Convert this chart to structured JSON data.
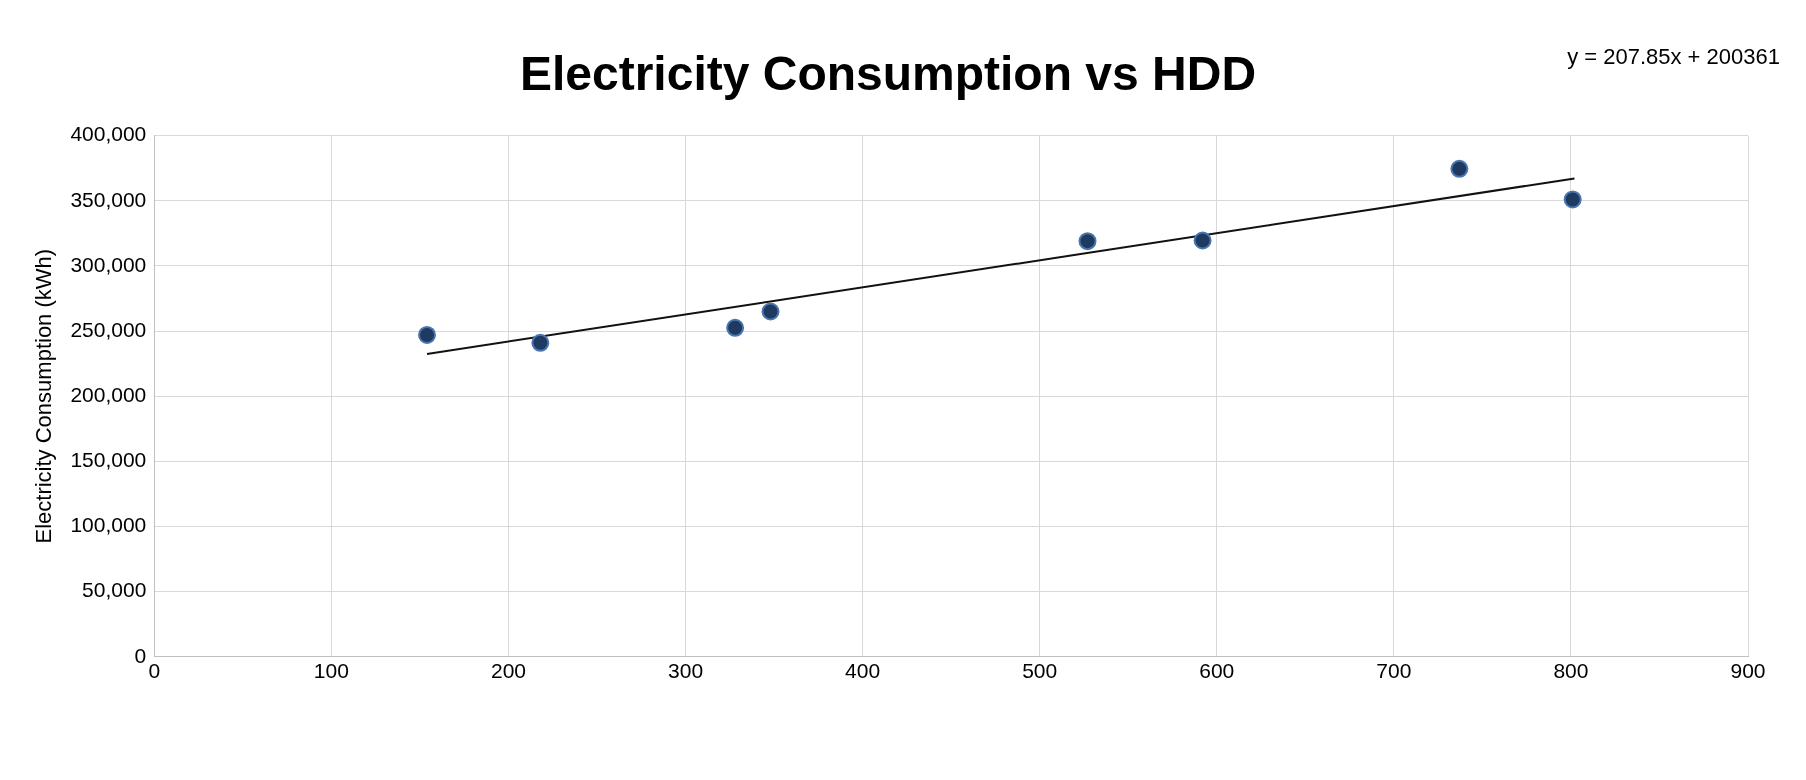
{
  "chart_data": {
    "type": "scatter",
    "title": "Electricity Consumption vs HDD",
    "ylabel": "Electricity Consumption (kWh)",
    "annotations": [
      "y = 207.85x + 200361"
    ],
    "xlim": [
      0,
      900
    ],
    "xticks": [
      0,
      100,
      200,
      300,
      400,
      500,
      600,
      700,
      800,
      900
    ],
    "ylim": [
      0,
      400000
    ],
    "yticks": [
      {
        "value": 0,
        "label": "0"
      },
      {
        "value": 50000,
        "label": "50,000"
      },
      {
        "value": 100000,
        "label": "100,000"
      },
      {
        "value": 150000,
        "label": "150,000"
      },
      {
        "value": 200000,
        "label": "200,000"
      },
      {
        "value": 250000,
        "label": "250,000"
      },
      {
        "value": 300000,
        "label": "300,000"
      },
      {
        "value": 350000,
        "label": "350,000"
      },
      {
        "value": 400000,
        "label": "400,000"
      }
    ],
    "grid": true,
    "legend": false,
    "series": [
      {
        "marker": "circle",
        "color": "#1f3a60",
        "x": [
          154,
          218,
          328,
          348,
          527,
          592,
          737,
          801
        ],
        "values": [
          247000,
          241000,
          252500,
          265000,
          319000,
          319500,
          374500,
          351000
        ]
      },
      {
        "type": "line",
        "marker": "none",
        "color": "#111111",
        "x": [
          154,
          802
        ],
        "values": [
          232400,
          367100
        ]
      }
    ]
  }
}
